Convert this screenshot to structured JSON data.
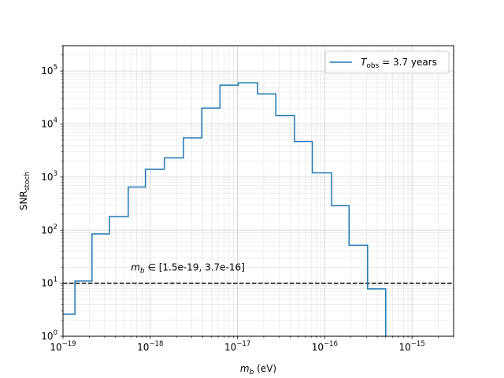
{
  "chart_data": {
    "type": "line",
    "drawstyle": "steps-post",
    "xscale": "log",
    "yscale": "log",
    "xlim": [
      1e-19,
      3e-15
    ],
    "ylim": [
      1,
      300000
    ],
    "xlabel": "m_b (eV)",
    "xlabel_main": "m",
    "xlabel_sub": "b",
    "xlabel_unit": " (eV)",
    "ylabel_main": "SNR",
    "ylabel_sub": "stoch",
    "x_tick_base": "10",
    "x_tick_labels": [
      {
        "value": 1e-19,
        "exp": "−19"
      },
      {
        "value": 1e-18,
        "exp": "−18"
      },
      {
        "value": 1e-17,
        "exp": "−17"
      },
      {
        "value": 1e-16,
        "exp": "−16"
      },
      {
        "value": 1e-15,
        "exp": "−15"
      }
    ],
    "y_tick_labels": [
      {
        "value": 1,
        "base": "10",
        "exp": "0"
      },
      {
        "value": 10,
        "base": "10",
        "exp": "1"
      },
      {
        "value": 100,
        "base": "10",
        "exp": "2"
      },
      {
        "value": 1000,
        "base": "10",
        "exp": "3"
      },
      {
        "value": 10000,
        "base": "10",
        "exp": "4"
      },
      {
        "value": 100000,
        "base": "10",
        "exp": "5"
      }
    ],
    "grid": true,
    "legend_position": "top-right",
    "series": [
      {
        "name": "T_obs = 3.7 years",
        "name_main": "T",
        "name_sub": "obs",
        "name_rest": " = 3.7 years",
        "color": "#1f77b4",
        "x": [
          1e-19,
          1.37e-19,
          2.15e-19,
          3.4e-19,
          5.6e-19,
          8.8e-19,
          1.45e-18,
          2.4e-18,
          3.9e-18,
          6.3e-18,
          1.02e-17,
          1.7e-17,
          2.75e-17,
          4.5e-17,
          7.2e-17,
          1.2e-16,
          1.9e-16,
          3.1e-16,
          5e-16
        ],
        "y": [
          2.6,
          11,
          85,
          180,
          650,
          1400,
          2300,
          5500,
          20000,
          54000,
          60000,
          37000,
          14500,
          4700,
          1200,
          290,
          52,
          7.8,
          7.8
        ],
        "end_x": 5e-16
      }
    ],
    "threshold": {
      "value": 10,
      "style": "dashed",
      "color": "#000000"
    },
    "annotation": {
      "text_main": "m",
      "text_sub": "b",
      "text_rest": " ∈ [1.5e-19, 3.7e-16]",
      "x": 6e-19,
      "y": 20
    }
  }
}
